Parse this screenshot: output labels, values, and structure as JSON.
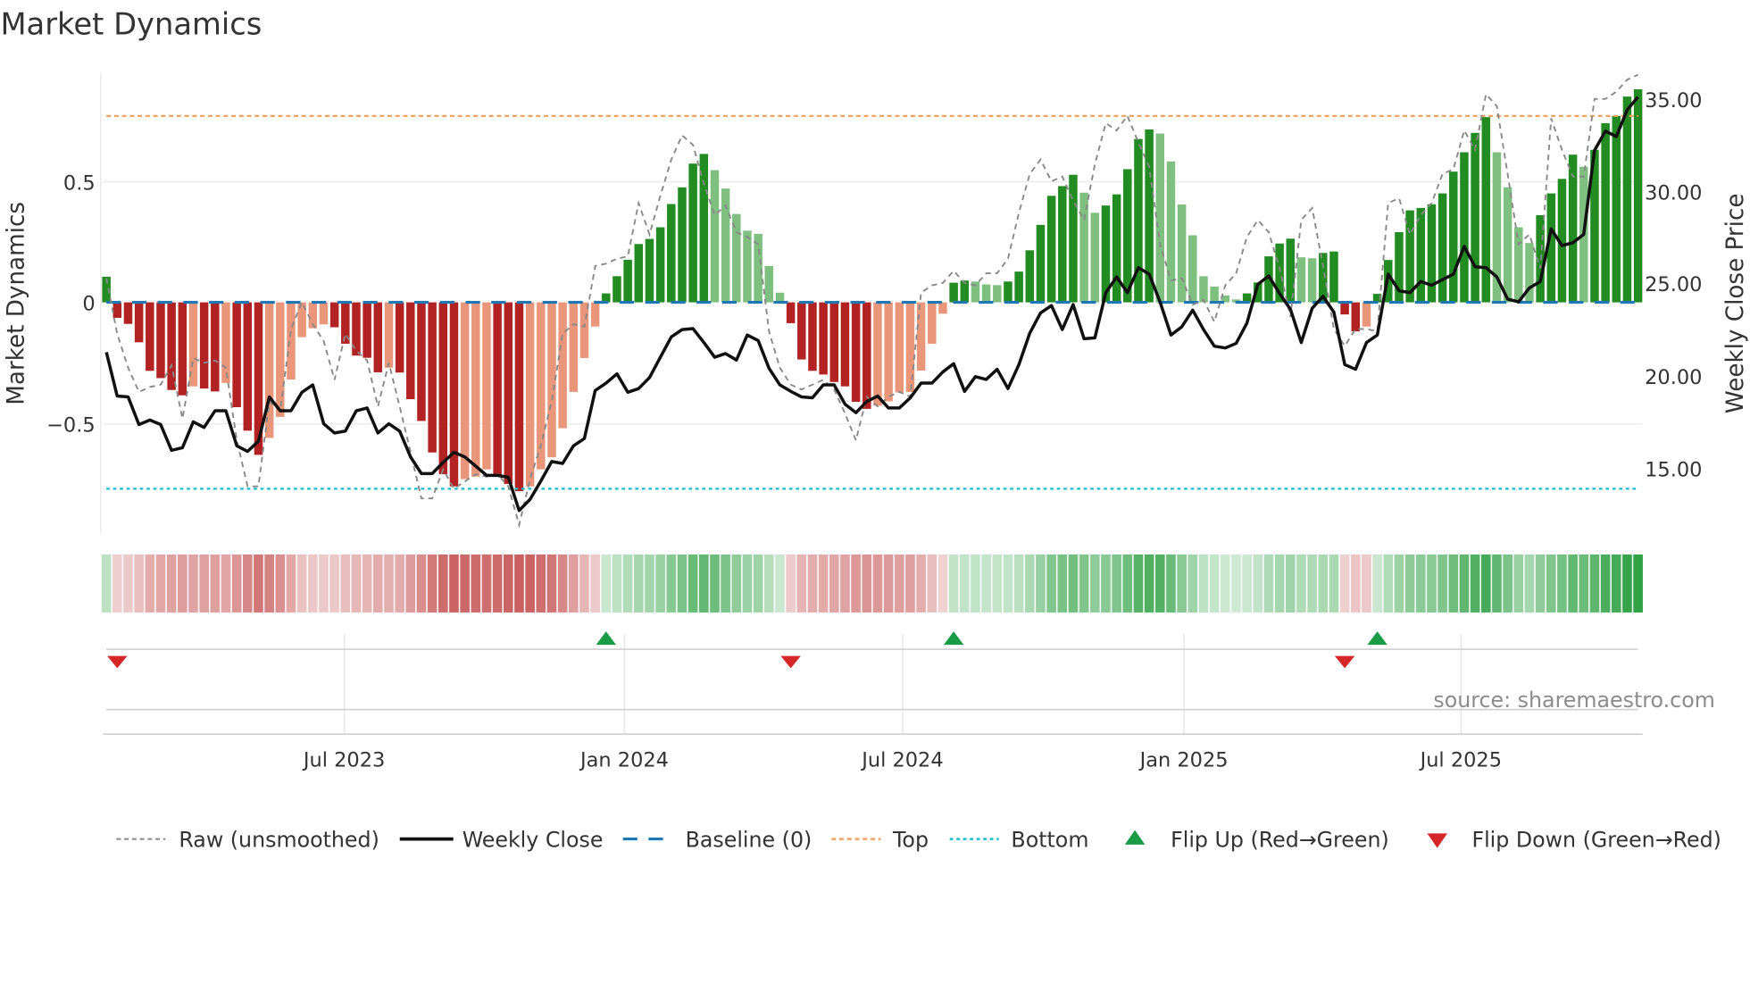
{
  "chart_data": {
    "type": "bar",
    "title": "Market Dynamics",
    "ylabel": "Market Dynamics",
    "ylabel_right": "Weekly Close Price",
    "ylim": [
      -0.96,
      0.96
    ],
    "ylim_right": [
      12.0,
      36.5
    ],
    "frequency": "weekly",
    "grid": true,
    "legend_position": "bottom",
    "top_level": 0.77,
    "bottom_level": -0.77,
    "baseline": 0,
    "y_ticks": [
      {
        "value": 0.5,
        "label": "0.5"
      },
      {
        "value": 0,
        "label": "0"
      },
      {
        "value": -0.5,
        "label": "−0.5"
      }
    ],
    "y_ticks_right": [
      {
        "value": 35,
        "label": "35.00"
      },
      {
        "value": 30,
        "label": "30.00"
      },
      {
        "value": 25,
        "label": "25.00"
      },
      {
        "value": 20,
        "label": "20.00"
      },
      {
        "value": 15,
        "label": "15.00"
      }
    ],
    "x_ticks": [
      {
        "week": 21.9,
        "label": "Jul 2023"
      },
      {
        "week": 47.7,
        "label": "Jan 2024"
      },
      {
        "week": 73.3,
        "label": "Jul 2024"
      },
      {
        "week": 99.2,
        "label": "Jan 2025"
      },
      {
        "week": 124.7,
        "label": "Jul 2025"
      }
    ],
    "momentum": [
      0.106,
      -0.064,
      -0.089,
      -0.165,
      -0.283,
      -0.313,
      -0.362,
      -0.384,
      -0.347,
      -0.356,
      -0.368,
      -0.333,
      -0.433,
      -0.53,
      -0.63,
      -0.56,
      -0.473,
      -0.319,
      -0.144,
      -0.107,
      -0.091,
      -0.103,
      -0.171,
      -0.22,
      -0.229,
      -0.289,
      -0.27,
      -0.29,
      -0.4,
      -0.49,
      -0.62,
      -0.71,
      -0.76,
      -0.73,
      -0.72,
      -0.69,
      -0.72,
      -0.75,
      -0.78,
      -0.76,
      -0.69,
      -0.64,
      -0.52,
      -0.37,
      -0.23,
      -0.1,
      0.037,
      0.108,
      0.176,
      0.241,
      0.262,
      0.31,
      0.406,
      0.475,
      0.573,
      0.613,
      0.546,
      0.47,
      0.365,
      0.296,
      0.283,
      0.15,
      0.04,
      -0.086,
      -0.236,
      -0.283,
      -0.298,
      -0.329,
      -0.347,
      -0.411,
      -0.44,
      -0.427,
      -0.409,
      -0.372,
      -0.37,
      -0.282,
      -0.171,
      -0.047,
      0.081,
      0.09,
      0.086,
      0.074,
      0.071,
      0.086,
      0.127,
      0.215,
      0.32,
      0.44,
      0.48,
      0.527,
      0.453,
      0.37,
      0.4,
      0.446,
      0.55,
      0.675,
      0.714,
      0.697,
      0.582,
      0.404,
      0.277,
      0.108,
      0.065,
      0.028,
      0.012,
      0.037,
      0.082,
      0.19,
      0.243,
      0.263,
      0.186,
      0.182,
      0.204,
      0.21,
      -0.05,
      -0.12,
      -0.1,
      0.035,
      0.175,
      0.29,
      0.38,
      0.39,
      0.405,
      0.45,
      0.54,
      0.62,
      0.7,
      0.765,
      0.62,
      0.475,
      0.31,
      0.245,
      0.36,
      0.45,
      0.51,
      0.61,
      0.56,
      0.63,
      0.74,
      0.77,
      0.85,
      0.88
    ],
    "raw": [
      0.1,
      -0.13,
      -0.27,
      -0.37,
      -0.35,
      -0.34,
      -0.26,
      -0.48,
      -0.23,
      -0.25,
      -0.24,
      -0.27,
      -0.57,
      -0.76,
      -0.76,
      -0.41,
      -0.45,
      -0.11,
      0.0,
      -0.09,
      -0.16,
      -0.32,
      -0.13,
      -0.2,
      -0.24,
      -0.43,
      -0.25,
      -0.43,
      -0.62,
      -0.81,
      -0.81,
      -0.69,
      -0.77,
      -0.74,
      -0.71,
      -0.72,
      -0.71,
      -0.76,
      -0.92,
      -0.73,
      -0.59,
      -0.41,
      -0.13,
      -0.09,
      -0.1,
      0.15,
      0.16,
      0.18,
      0.19,
      0.41,
      0.28,
      0.44,
      0.59,
      0.69,
      0.65,
      0.49,
      0.36,
      0.4,
      0.29,
      0.27,
      0.24,
      -0.12,
      -0.27,
      -0.34,
      -0.36,
      -0.34,
      -0.32,
      -0.36,
      -0.46,
      -0.57,
      -0.39,
      -0.43,
      -0.39,
      -0.37,
      -0.39,
      0.04,
      0.07,
      0.08,
      0.13,
      0.08,
      0.07,
      0.12,
      0.12,
      0.18,
      0.37,
      0.53,
      0.59,
      0.5,
      0.52,
      0.42,
      0.34,
      0.57,
      0.74,
      0.71,
      0.77,
      0.66,
      0.56,
      0.24,
      0.09,
      0.1,
      -0.01,
      0.01,
      -0.08,
      0.07,
      0.12,
      0.27,
      0.34,
      0.29,
      0.14,
      -0.06,
      0.34,
      0.39,
      0.15,
      -0.11,
      -0.18,
      -0.11,
      -0.11,
      -0.12,
      0.41,
      0.43,
      0.28,
      0.36,
      0.41,
      0.53,
      0.55,
      0.71,
      0.63,
      0.86,
      0.81,
      0.53,
      0.24,
      0.28,
      0.14,
      0.76,
      0.63,
      0.52,
      0.52,
      0.84,
      0.84,
      0.87,
      0.92,
      0.94
    ],
    "weekly_close": [
      21.27,
      18.9,
      18.85,
      17.35,
      17.6,
      17.35,
      15.96,
      16.1,
      17.5,
      17.2,
      18.1,
      18.1,
      16.2,
      15.9,
      16.45,
      18.85,
      18.1,
      18.1,
      19.1,
      19.5,
      17.4,
      16.9,
      17.0,
      18.1,
      18.25,
      16.9,
      17.4,
      17.0,
      15.6,
      14.7,
      14.7,
      15.3,
      15.85,
      15.6,
      15.1,
      14.6,
      14.6,
      14.5,
      12.7,
      13.3,
      14.3,
      15.35,
      15.25,
      16.2,
      16.6,
      19.2,
      19.6,
      20.1,
      19.1,
      19.3,
      19.9,
      21.0,
      22.1,
      22.5,
      22.55,
      21.8,
      21.0,
      21.2,
      20.85,
      22.2,
      21.9,
      20.4,
      19.5,
      19.15,
      18.85,
      18.8,
      19.5,
      19.5,
      18.45,
      18.0,
      18.6,
      18.9,
      18.25,
      18.25,
      18.8,
      19.6,
      19.6,
      20.2,
      20.65,
      19.15,
      19.95,
      19.8,
      20.35,
      19.3,
      20.6,
      22.3,
      23.4,
      23.8,
      22.5,
      23.85,
      22.0,
      22.05,
      24.5,
      25.35,
      24.5,
      25.85,
      25.5,
      24.0,
      22.2,
      22.65,
      23.55,
      22.5,
      21.6,
      21.5,
      21.75,
      22.85,
      24.95,
      25.4,
      24.45,
      23.6,
      21.8,
      23.65,
      24.3,
      23.45,
      20.6,
      20.35,
      21.8,
      22.2,
      25.5,
      24.6,
      24.5,
      25.1,
      24.9,
      25.2,
      25.5,
      27.0,
      25.9,
      25.85,
      25.35,
      24.15,
      24.0,
      24.75,
      25.1,
      27.95,
      27.05,
      27.2,
      27.65,
      32.2,
      33.25,
      32.95,
      34.4,
      35.1
    ],
    "colors": {
      "rising_green": "#228b22",
      "falling_green": "#7fbf7f",
      "falling_red": "#b22222",
      "rising_red": "#e9967a",
      "baseline": "#1f77b4",
      "top": "#f4a460",
      "bottom": "#17becf",
      "flip_up": "#1a9c47",
      "flip_down": "#d62728",
      "raw": "#888888",
      "close": "#111111"
    },
    "legend": [
      {
        "label": "Raw (unsmoothed)"
      },
      {
        "label": "Weekly Close"
      },
      {
        "label": "Baseline (0)"
      },
      {
        "label": "Top"
      },
      {
        "label": "Bottom"
      },
      {
        "label": "Flip Up (Red→Green)"
      },
      {
        "label": "Flip Down (Green→Red)"
      }
    ],
    "source": "source: sharemaestro.com"
  }
}
